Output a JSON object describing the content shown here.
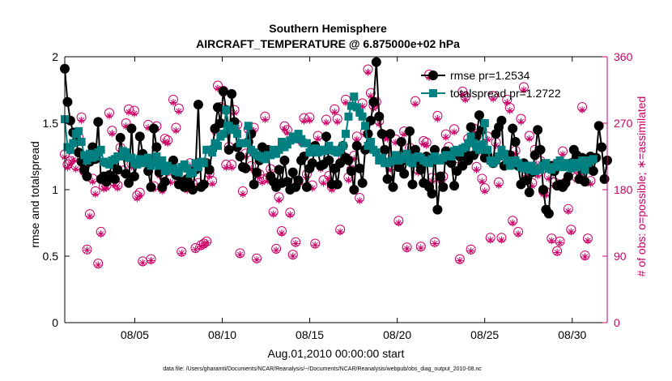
{
  "chart_data": {
    "type": "line",
    "title": "Southern Hemisphere",
    "subtitle": "AIRCRAFT_TEMPERATURE @ 6.875000e+02 hPa",
    "xlabel": "Aug.01,2010 00:00:00 start",
    "ylabel": "rmse and totalspread",
    "y2label": "# of obs: o=possible; ∗=assimilated",
    "footnote": "data file: /Users/gharamti/Documents/NCAR/Reanalysis/~/Documents/NCAR/Reanalysis/webpub/obs_diag_output_2010-08.nc",
    "xlim": [
      1.0,
      32.0
    ],
    "ylim": [
      0,
      2
    ],
    "y2lim": [
      0,
      360
    ],
    "x_ticks": [
      5,
      10,
      15,
      20,
      25,
      30
    ],
    "x_tick_labels": [
      "08/05",
      "08/10",
      "08/15",
      "08/20",
      "08/25",
      "08/30"
    ],
    "y_ticks": [
      0,
      0.5,
      1,
      1.5,
      2
    ],
    "y_tick_labels": [
      "0",
      "0.5",
      "1",
      "1.5",
      "2"
    ],
    "y2_ticks": [
      0,
      90,
      180,
      270,
      360
    ],
    "y2_tick_labels": [
      "0",
      "90",
      "180",
      "270",
      "360"
    ],
    "legend_position": "top-right",
    "series": [
      {
        "name": "rmse pr=1.2534",
        "color": "#000000",
        "marker": "circle",
        "axis": "left",
        "values": [
          1.91,
          1.66,
          1.52,
          1.43,
          1.36,
          1.28,
          1.21,
          1.15,
          1.1,
          1.21,
          1.32,
          1.23,
          1.51,
          1.08,
          1.1,
          1.06,
          1.11,
          1.2,
          1.08,
          1.15,
          1.39,
          1.26,
          1.12,
          1.05,
          1.46,
          1.1,
          1.2,
          1.4,
          1.27,
          1.22,
          1.14,
          1.02,
          1.46,
          1.32,
          1.13,
          1.02,
          1.06,
          1.15,
          1.18,
          1.22,
          1.11,
          1.04,
          1.06,
          1.02,
          1.08,
          1.04,
          1.0,
          1.15,
          1.64,
          1.02,
          1.04,
          1.2,
          1.15,
          1.3,
          1.46,
          1.62,
          1.5,
          1.74,
          1.6,
          1.3,
          1.72,
          1.51,
          1.32,
          1.25,
          1.17,
          1.16,
          1.36,
          1.42,
          1.04,
          1.13,
          1.22,
          1.32,
          1.24,
          1.3,
          1.1,
          1.06,
          1.02,
          1.15,
          1.05,
          1.22,
          1.06,
          1.0,
          1.13,
          1.02,
          1.07,
          1.22,
          1.25,
          1.02,
          1.16,
          1.2,
          1.33,
          1.29,
          1.18,
          1.19,
          1.4,
          1.22,
          1.04,
          1.16,
          1.04,
          1.2,
          1.33,
          1.24,
          1.22,
          1.14,
          1.0,
          1.33,
          1.16,
          1.05,
          1.3,
          1.42,
          1.52,
          1.66,
          1.96,
          1.55,
          1.42,
          1.3,
          1.08,
          1.42,
          1.02,
          1.24,
          1.17,
          1.36,
          1.12,
          1.22,
          1.44,
          1.04,
          1.3,
          1.2,
          1.15,
          1.05,
          1.25,
          1.02,
          0.97,
          1.3,
          0.85,
          1.1,
          1.02,
          1.29,
          1.22,
          1.2,
          1.03,
          1.14,
          1.25,
          1.18,
          1.28,
          1.22,
          1.47,
          1.26,
          1.4,
          1.56,
          1.45,
          1.24,
          1.26,
          1.22,
          1.2,
          1.42,
          1.47,
          1.52,
          1.18,
          1.2,
          1.26,
          1.46,
          1.36,
          1.18,
          1.04,
          1.2,
          1.07,
          0.98,
          1.13,
          1.26,
          1.45,
          1.3,
          1.0,
          0.85,
          0.82,
          1.18,
          1.14,
          1.03,
          1.04,
          1.02,
          1.05,
          1.1,
          1.2,
          1.3,
          1.26,
          1.08,
          1.24,
          1.06,
          1.16,
          1.25,
          1.14,
          1.24,
          1.48,
          1.32,
          1.08,
          1.22
        ]
      },
      {
        "name": "totalspread pr=1.2722",
        "color": "#008080",
        "marker": "square",
        "axis": "left",
        "values": [
          1.53,
          1.32,
          1.3,
          1.35,
          1.42,
          1.44,
          1.36,
          1.26,
          1.22,
          1.27,
          1.24,
          1.25,
          1.28,
          1.3,
          1.21,
          1.2,
          1.19,
          1.22,
          1.23,
          1.25,
          1.25,
          1.29,
          1.28,
          1.24,
          1.24,
          1.2,
          1.19,
          1.23,
          1.2,
          1.22,
          1.24,
          1.18,
          1.2,
          1.25,
          1.18,
          1.22,
          1.14,
          1.18,
          1.15,
          1.16,
          1.14,
          1.13,
          1.17,
          1.19,
          1.16,
          1.12,
          1.13,
          1.2,
          1.17,
          1.21,
          1.2,
          1.3,
          1.3,
          1.28,
          1.35,
          1.33,
          1.4,
          1.42,
          1.6,
          1.48,
          1.45,
          1.46,
          1.42,
          1.35,
          1.35,
          1.35,
          1.48,
          1.3,
          1.28,
          1.26,
          1.25,
          1.24,
          1.23,
          1.26,
          1.26,
          1.3,
          1.27,
          1.3,
          1.36,
          1.32,
          1.34,
          1.37,
          1.4,
          1.38,
          1.42,
          1.38,
          1.35,
          1.35,
          1.28,
          1.3,
          1.31,
          1.28,
          1.3,
          1.29,
          1.3,
          1.33,
          1.3,
          1.29,
          1.28,
          1.3,
          1.33,
          1.42,
          1.55,
          1.63,
          1.7,
          1.62,
          1.58,
          1.55,
          1.48,
          1.33,
          1.36,
          1.3,
          1.28,
          1.22,
          1.24,
          1.2,
          1.2,
          1.21,
          1.22,
          1.26,
          1.22,
          1.23,
          1.25,
          1.27,
          1.21,
          1.2,
          1.24,
          1.25,
          1.24,
          1.22,
          1.21,
          1.2,
          1.23,
          1.25,
          1.22,
          1.22,
          1.24,
          1.26,
          1.26,
          1.25,
          1.29,
          1.3,
          1.28,
          1.31,
          1.32,
          1.35,
          1.4,
          1.35,
          1.32,
          1.3,
          1.34,
          1.5,
          1.3,
          1.22,
          1.2,
          1.22,
          1.25,
          1.3,
          1.27,
          1.22,
          1.18,
          1.2,
          1.22,
          1.2,
          1.17,
          1.16,
          1.18,
          1.15,
          1.18,
          1.14,
          1.16,
          1.15,
          1.18,
          1.2,
          1.16,
          1.15,
          1.17,
          1.2,
          1.22,
          1.17,
          1.2,
          1.18,
          1.16,
          1.2,
          1.17,
          1.2,
          1.22,
          1.15,
          1.2,
          1.22,
          1.23
        ]
      }
    ],
    "obs_possible": {
      "name": "possible",
      "color": "#cc0066",
      "marker": "o",
      "axis": "right",
      "values": [
        228,
        214,
        219,
        224,
        212,
        251,
        278,
        205,
        99,
        147,
        195,
        178,
        80,
        123,
        185,
        186,
        284,
        260,
        190,
        186,
        237,
        206,
        270,
        289,
        215,
        287,
        172,
        176,
        83,
        218,
        268,
        86,
        185,
        266,
        203,
        182,
        249,
        247,
        194,
        302,
        264,
        290,
        96,
        212,
        183,
        216,
        188,
        101,
        189,
        105,
        107,
        110,
        202,
        192,
        262,
        321,
        292,
        314,
        214,
        238,
        214,
        288,
        268,
        94,
        178,
        229,
        262,
        212,
        264,
        87,
        201,
        194,
        279,
        196,
        208,
        150,
        100,
        170,
        124,
        266,
        261,
        149,
        92,
        109,
        191,
        247,
        277,
        201,
        278,
        186,
        107,
        253,
        212,
        193,
        275,
        199,
        184,
        289,
        276,
        126,
        225,
        302,
        197,
        207,
        226,
        252,
        169,
        297,
        259,
        343,
        311,
        294,
        299,
        273,
        229,
        254,
        253,
        211,
        220,
        248,
        138,
        218,
        259,
        102,
        237,
        218,
        300,
        207,
        103,
        246,
        244,
        336,
        196,
        109,
        280,
        196,
        198,
        255,
        238,
        229,
        262,
        211,
        86,
        313,
        306,
        249,
        99,
        263,
        211,
        235,
        195,
        182,
        252,
        115,
        307,
        244,
        190,
        115,
        217,
        302,
        291,
        138,
        233,
        123,
        276,
        319,
        203,
        253,
        189,
        234,
        203,
        219,
        178,
        177,
        199,
        114,
        190,
        97,
        110,
        232,
        190,
        154,
        126,
        212,
        197,
        205,
        292,
        91,
        114,
        192
      ]
    },
    "obs_assimilated": {
      "name": "assimilated",
      "color": "#cc0066",
      "marker": "*",
      "axis": "right",
      "values": [
        224,
        210,
        215,
        220,
        208,
        247,
        274,
        201,
        98,
        144,
        191,
        174,
        78,
        120,
        181,
        182,
        280,
        256,
        186,
        182,
        233,
        202,
        266,
        285,
        211,
        283,
        168,
        172,
        81,
        214,
        264,
        84,
        181,
        262,
        199,
        178,
        245,
        243,
        190,
        298,
        260,
        286,
        94,
        208,
        179,
        212,
        184,
        99,
        185,
        103,
        105,
        108,
        198,
        188,
        258,
        317,
        288,
        310,
        210,
        234,
        210,
        284,
        264,
        92,
        174,
        225,
        258,
        208,
        260,
        85,
        197,
        190,
        275,
        192,
        204,
        147,
        98,
        166,
        121,
        262,
        257,
        146,
        90,
        107,
        187,
        243,
        273,
        197,
        274,
        182,
        105,
        249,
        208,
        189,
        271,
        195,
        180,
        285,
        272,
        123,
        221,
        298,
        193,
        203,
        222,
        248,
        165,
        293,
        255,
        339,
        307,
        290,
        295,
        269,
        225,
        250,
        249,
        207,
        216,
        244,
        135,
        214,
        255,
        100,
        233,
        214,
        296,
        203,
        101,
        242,
        240,
        332,
        192,
        107,
        276,
        192,
        194,
        251,
        234,
        225,
        258,
        207,
        84,
        309,
        302,
        245,
        97,
        259,
        207,
        231,
        191,
        178,
        248,
        112,
        303,
        240,
        186,
        112,
        213,
        298,
        287,
        135,
        229,
        120,
        272,
        315,
        199,
        249,
        185,
        230,
        199,
        215,
        174,
        173,
        195,
        111,
        186,
        95,
        108,
        228,
        186,
        151,
        123,
        208,
        193,
        201,
        288,
        89,
        111,
        188
      ]
    }
  }
}
